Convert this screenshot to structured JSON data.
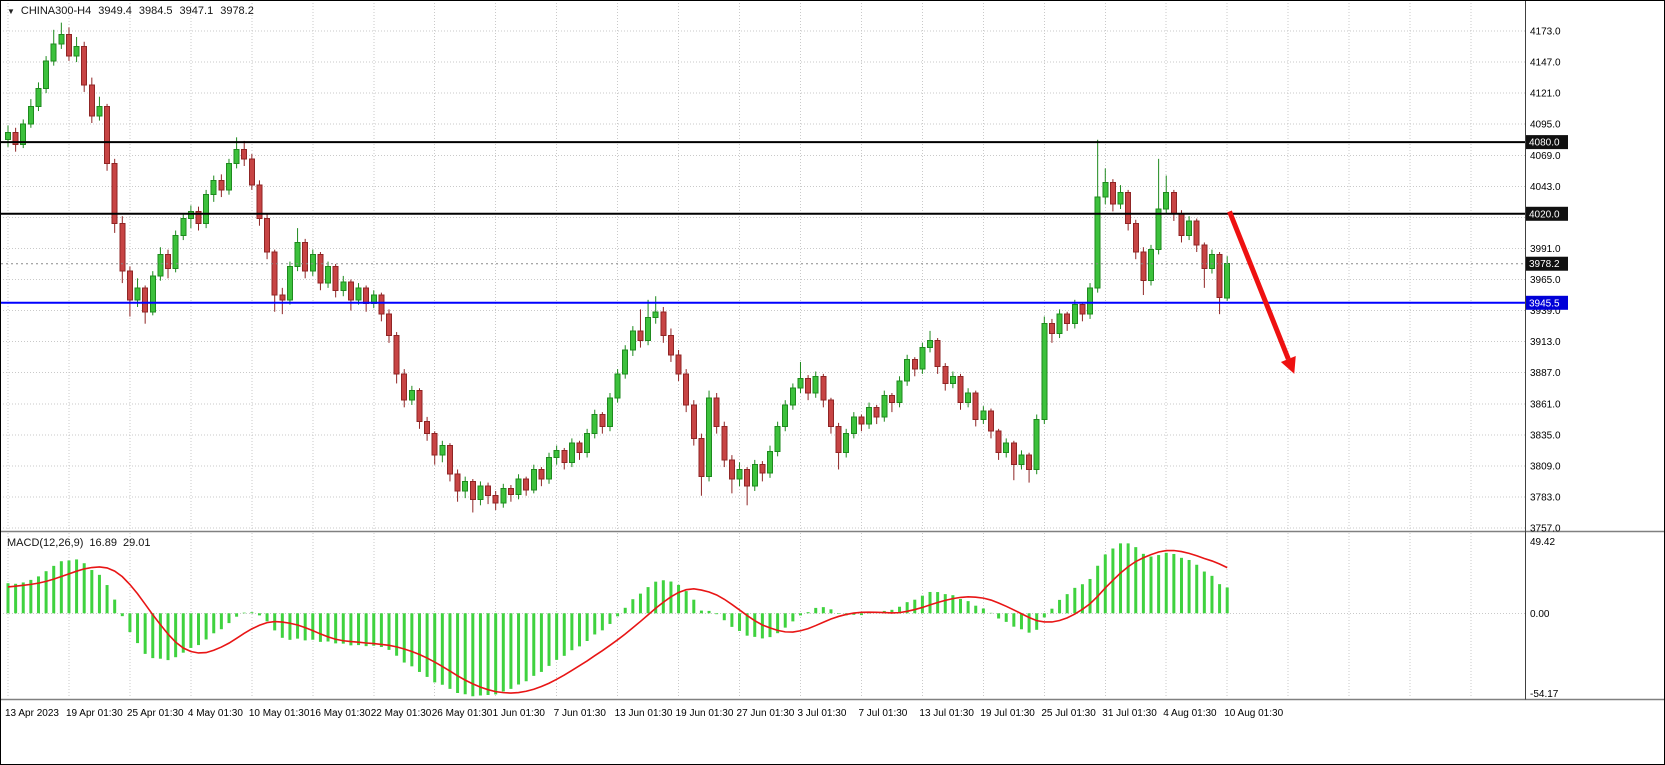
{
  "quote_bar": {
    "symbol": "CHINA300-H4",
    "open": "3949.4",
    "high": "3984.5",
    "low": "3947.1",
    "close": "3978.2"
  },
  "colors": {
    "bull": "#3cc13c",
    "bull_border": "#1e8a1e",
    "bear": "#c74444",
    "bear_border": "#8f2525",
    "macd_hist": "#3fd23f",
    "macd_signal": "#e81515",
    "hline_black": "#000000",
    "hline_blue": "#0000ff",
    "tag_dark_bg": "#101010",
    "tag_blue_bg": "#0000d8",
    "arrow": "#ee1111",
    "background": "#ffffff"
  },
  "chart_data": {
    "type": "candlestick",
    "symbol": "CHINA300",
    "timeframe": "H4",
    "bars_per_time_tick": 8,
    "x_tick_labels": [
      "13 Apr 2023",
      "19 Apr 01:30",
      "25 Apr 01:30",
      "4 May 01:30",
      "10 May 01:30",
      "16 May 01:30",
      "22 May 01:30",
      "26 May 01:30",
      "1 Jun 01:30",
      "7 Jun 01:30",
      "13 Jun 01:30",
      "19 Jun 01:30",
      "27 Jun 01:30",
      "3 Jul 01:30",
      "7 Jul 01:30",
      "13 Jul 01:30",
      "19 Jul 01:30",
      "25 Jul 01:30",
      "31 Jul 01:30",
      "4 Aug 01:30",
      "10 Aug 01:30"
    ],
    "y_ticks": [
      4173.0,
      4147.0,
      4121.0,
      4095.0,
      4069.0,
      4043.0,
      3991.0,
      3965.0,
      3939.0,
      3913.0,
      3887.0,
      3861.0,
      3835.0,
      3809.0,
      3783.0,
      3757.0
    ],
    "y_decimals": 1,
    "y_axis": {
      "min": 3757.0,
      "max": 4173.0,
      "tick_step": 26.0
    },
    "hlines": [
      {
        "price": 4080.0,
        "label": "4080.0",
        "color": "#000000",
        "tag_bg": "#101010"
      },
      {
        "price": 4020.0,
        "label": "4020.0",
        "color": "#000000",
        "tag_bg": "#101010"
      },
      {
        "price": 3945.5,
        "label": "3945.5",
        "color": "#0000ff",
        "tag_bg": "#0000d8"
      }
    ],
    "last_price": {
      "value": 3978.2,
      "label": "3978.2",
      "tag_bg": "#101010"
    },
    "macd": {
      "label": "MACD(12,26,9)",
      "main_value": "16.89",
      "signal_value": "29.01",
      "params": [
        12,
        26,
        9
      ],
      "axis_max": 49.42,
      "axis_min": -54.17,
      "axis_labels": {
        "max": "49.42",
        "zero": "0.00",
        "min": "-54.17"
      }
    },
    "arrow": {
      "from_bar": 160.3,
      "from_price": 4022,
      "to_bar": 168.8,
      "to_price": 3886,
      "color": "#ee1111"
    },
    "ohlc": [
      [
        4082,
        4094,
        4076,
        4088
      ],
      [
        4088,
        4092,
        4072,
        4078
      ],
      [
        4078,
        4099,
        4075,
        4095
      ],
      [
        4095,
        4116,
        4092,
        4110
      ],
      [
        4110,
        4130,
        4106,
        4125
      ],
      [
        4125,
        4152,
        4121,
        4148
      ],
      [
        4148,
        4174,
        4144,
        4162
      ],
      [
        4162,
        4180,
        4158,
        4170
      ],
      [
        4170,
        4176,
        4148,
        4152
      ],
      [
        4152,
        4168,
        4147,
        4160
      ],
      [
        4160,
        4164,
        4122,
        4128
      ],
      [
        4128,
        4134,
        4096,
        4102
      ],
      [
        4102,
        4118,
        4098,
        4110
      ],
      [
        4110,
        4112,
        4056,
        4062
      ],
      [
        4062,
        4066,
        4004,
        4012
      ],
      [
        4012,
        4018,
        3962,
        3972
      ],
      [
        3972,
        3976,
        3934,
        3948
      ],
      [
        3948,
        3966,
        3942,
        3958
      ],
      [
        3958,
        3960,
        3928,
        3938
      ],
      [
        3938,
        3972,
        3935,
        3968
      ],
      [
        3968,
        3992,
        3964,
        3986
      ],
      [
        3986,
        3990,
        3966,
        3974
      ],
      [
        3974,
        4006,
        3971,
        4002
      ],
      [
        4002,
        4020,
        3998,
        4016
      ],
      [
        4016,
        4027,
        4008,
        4022
      ],
      [
        4022,
        4026,
        4006,
        4012
      ],
      [
        4012,
        4040,
        4008,
        4036
      ],
      [
        4036,
        4052,
        4030,
        4048
      ],
      [
        4048,
        4053,
        4034,
        4040
      ],
      [
        4040,
        4066,
        4036,
        4062
      ],
      [
        4062,
        4084,
        4058,
        4074
      ],
      [
        4074,
        4081,
        4060,
        4066
      ],
      [
        4066,
        4070,
        4040,
        4044
      ],
      [
        4044,
        4048,
        4010,
        4016
      ],
      [
        4016,
        4020,
        3982,
        3988
      ],
      [
        3988,
        3990,
        3938,
        3952
      ],
      [
        3952,
        3958,
        3936,
        3948
      ],
      [
        3948,
        3980,
        3944,
        3976
      ],
      [
        3976,
        4008,
        3972,
        3996
      ],
      [
        3996,
        3999,
        3966,
        3972
      ],
      [
        3972,
        3990,
        3968,
        3986
      ],
      [
        3986,
        3988,
        3956,
        3962
      ],
      [
        3962,
        3980,
        3958,
        3976
      ],
      [
        3976,
        3978,
        3950,
        3956
      ],
      [
        3956,
        3968,
        3951,
        3963
      ],
      [
        3963,
        3965,
        3939,
        3948
      ],
      [
        3948,
        3962,
        3944,
        3958
      ],
      [
        3958,
        3960,
        3938,
        3945
      ],
      [
        3945,
        3956,
        3941,
        3952
      ],
      [
        3952,
        3954,
        3930,
        3936
      ],
      [
        3936,
        3940,
        3912,
        3918
      ],
      [
        3918,
        3921,
        3878,
        3886
      ],
      [
        3886,
        3890,
        3858,
        3864
      ],
      [
        3864,
        3876,
        3860,
        3872
      ],
      [
        3872,
        3874,
        3840,
        3846
      ],
      [
        3846,
        3850,
        3830,
        3836
      ],
      [
        3836,
        3838,
        3810,
        3818
      ],
      [
        3818,
        3830,
        3812,
        3826
      ],
      [
        3826,
        3828,
        3796,
        3802
      ],
      [
        3802,
        3806,
        3779,
        3788
      ],
      [
        3788,
        3800,
        3782,
        3796
      ],
      [
        3796,
        3798,
        3770,
        3781
      ],
      [
        3781,
        3796,
        3776,
        3792
      ],
      [
        3792,
        3795,
        3777,
        3784
      ],
      [
        3784,
        3788,
        3772,
        3778
      ],
      [
        3778,
        3794,
        3774,
        3790
      ],
      [
        3790,
        3793,
        3779,
        3785
      ],
      [
        3785,
        3802,
        3781,
        3798
      ],
      [
        3798,
        3800,
        3784,
        3789
      ],
      [
        3789,
        3810,
        3786,
        3806
      ],
      [
        3806,
        3808,
        3792,
        3798
      ],
      [
        3798,
        3820,
        3794,
        3816
      ],
      [
        3816,
        3826,
        3810,
        3822
      ],
      [
        3822,
        3824,
        3806,
        3812
      ],
      [
        3812,
        3832,
        3808,
        3828
      ],
      [
        3828,
        3830,
        3814,
        3820
      ],
      [
        3820,
        3840,
        3816,
        3836
      ],
      [
        3836,
        3856,
        3832,
        3852
      ],
      [
        3852,
        3854,
        3836,
        3842
      ],
      [
        3842,
        3870,
        3838,
        3866
      ],
      [
        3866,
        3890,
        3862,
        3886
      ],
      [
        3886,
        3910,
        3882,
        3906
      ],
      [
        3906,
        3926,
        3901,
        3922
      ],
      [
        3922,
        3940,
        3908,
        3914
      ],
      [
        3914,
        3948,
        3910,
        3933
      ],
      [
        3933,
        3951,
        3928,
        3938
      ],
      [
        3938,
        3942,
        3912,
        3918
      ],
      [
        3918,
        3924,
        3896,
        3902
      ],
      [
        3902,
        3906,
        3880,
        3886
      ],
      [
        3886,
        3890,
        3854,
        3860
      ],
      [
        3860,
        3864,
        3826,
        3832
      ],
      [
        3832,
        3836,
        3784,
        3800
      ],
      [
        3800,
        3872,
        3796,
        3866
      ],
      [
        3866,
        3870,
        3836,
        3842
      ],
      [
        3842,
        3846,
        3808,
        3814
      ],
      [
        3814,
        3818,
        3786,
        3798
      ],
      [
        3798,
        3812,
        3792,
        3806
      ],
      [
        3806,
        3808,
        3776,
        3792
      ],
      [
        3792,
        3814,
        3788,
        3810
      ],
      [
        3810,
        3813,
        3796,
        3803
      ],
      [
        3803,
        3826,
        3799,
        3821
      ],
      [
        3821,
        3846,
        3817,
        3842
      ],
      [
        3842,
        3864,
        3838,
        3860
      ],
      [
        3860,
        3878,
        3856,
        3874
      ],
      [
        3874,
        3896,
        3870,
        3882
      ],
      [
        3882,
        3885,
        3864,
        3870
      ],
      [
        3870,
        3888,
        3866,
        3884
      ],
      [
        3884,
        3886,
        3858,
        3864
      ],
      [
        3864,
        3866,
        3836,
        3842
      ],
      [
        3842,
        3845,
        3806,
        3820
      ],
      [
        3820,
        3840,
        3816,
        3836
      ],
      [
        3836,
        3854,
        3832,
        3850
      ],
      [
        3850,
        3852,
        3838,
        3844
      ],
      [
        3844,
        3862,
        3840,
        3858
      ],
      [
        3858,
        3860,
        3844,
        3850
      ],
      [
        3850,
        3872,
        3846,
        3868
      ],
      [
        3868,
        3870,
        3854,
        3862
      ],
      [
        3862,
        3884,
        3858,
        3880
      ],
      [
        3880,
        3902,
        3876,
        3898
      ],
      [
        3898,
        3900,
        3884,
        3890
      ],
      [
        3890,
        3912,
        3886,
        3908
      ],
      [
        3908,
        3922,
        3904,
        3914
      ],
      [
        3914,
        3916,
        3886,
        3892
      ],
      [
        3892,
        3895,
        3872,
        3878
      ],
      [
        3878,
        3888,
        3874,
        3884
      ],
      [
        3884,
        3886,
        3856,
        3862
      ],
      [
        3862,
        3874,
        3858,
        3870
      ],
      [
        3870,
        3872,
        3842,
        3848
      ],
      [
        3848,
        3859,
        3844,
        3855
      ],
      [
        3855,
        3857,
        3832,
        3838
      ],
      [
        3838,
        3840,
        3814,
        3820
      ],
      [
        3820,
        3832,
        3816,
        3828
      ],
      [
        3828,
        3830,
        3797,
        3810
      ],
      [
        3810,
        3822,
        3806,
        3818
      ],
      [
        3818,
        3820,
        3795,
        3806
      ],
      [
        3806,
        3852,
        3802,
        3848
      ],
      [
        3848,
        3934,
        3844,
        3928
      ],
      [
        3928,
        3932,
        3912,
        3920
      ],
      [
        3920,
        3940,
        3916,
        3936
      ],
      [
        3936,
        3938,
        3922,
        3928
      ],
      [
        3928,
        3948,
        3924,
        3944
      ],
      [
        3944,
        3946,
        3930,
        3936
      ],
      [
        3936,
        3962,
        3932,
        3958
      ],
      [
        3958,
        4082,
        3954,
        4034
      ],
      [
        4034,
        4058,
        4028,
        4046
      ],
      [
        4046,
        4049,
        4022,
        4028
      ],
      [
        4028,
        4044,
        4024,
        4038
      ],
      [
        4038,
        4040,
        4006,
        4012
      ],
      [
        4012,
        4015,
        3982,
        3988
      ],
      [
        3988,
        3992,
        3952,
        3964
      ],
      [
        3964,
        3994,
        3960,
        3990
      ],
      [
        3990,
        4066,
        3986,
        4024
      ],
      [
        4024,
        4052,
        4020,
        4038
      ],
      [
        4038,
        4040,
        4014,
        4020
      ],
      [
        4020,
        4023,
        3996,
        4002
      ],
      [
        4002,
        4018,
        3998,
        4014
      ],
      [
        4014,
        4016,
        3988,
        3994
      ],
      [
        3994,
        3996,
        3958,
        3974
      ],
      [
        3974,
        3990,
        3970,
        3986
      ],
      [
        3986,
        3988,
        3936,
        3950
      ],
      [
        3949.4,
        3984.5,
        3947.1,
        3978.2
      ]
    ]
  }
}
